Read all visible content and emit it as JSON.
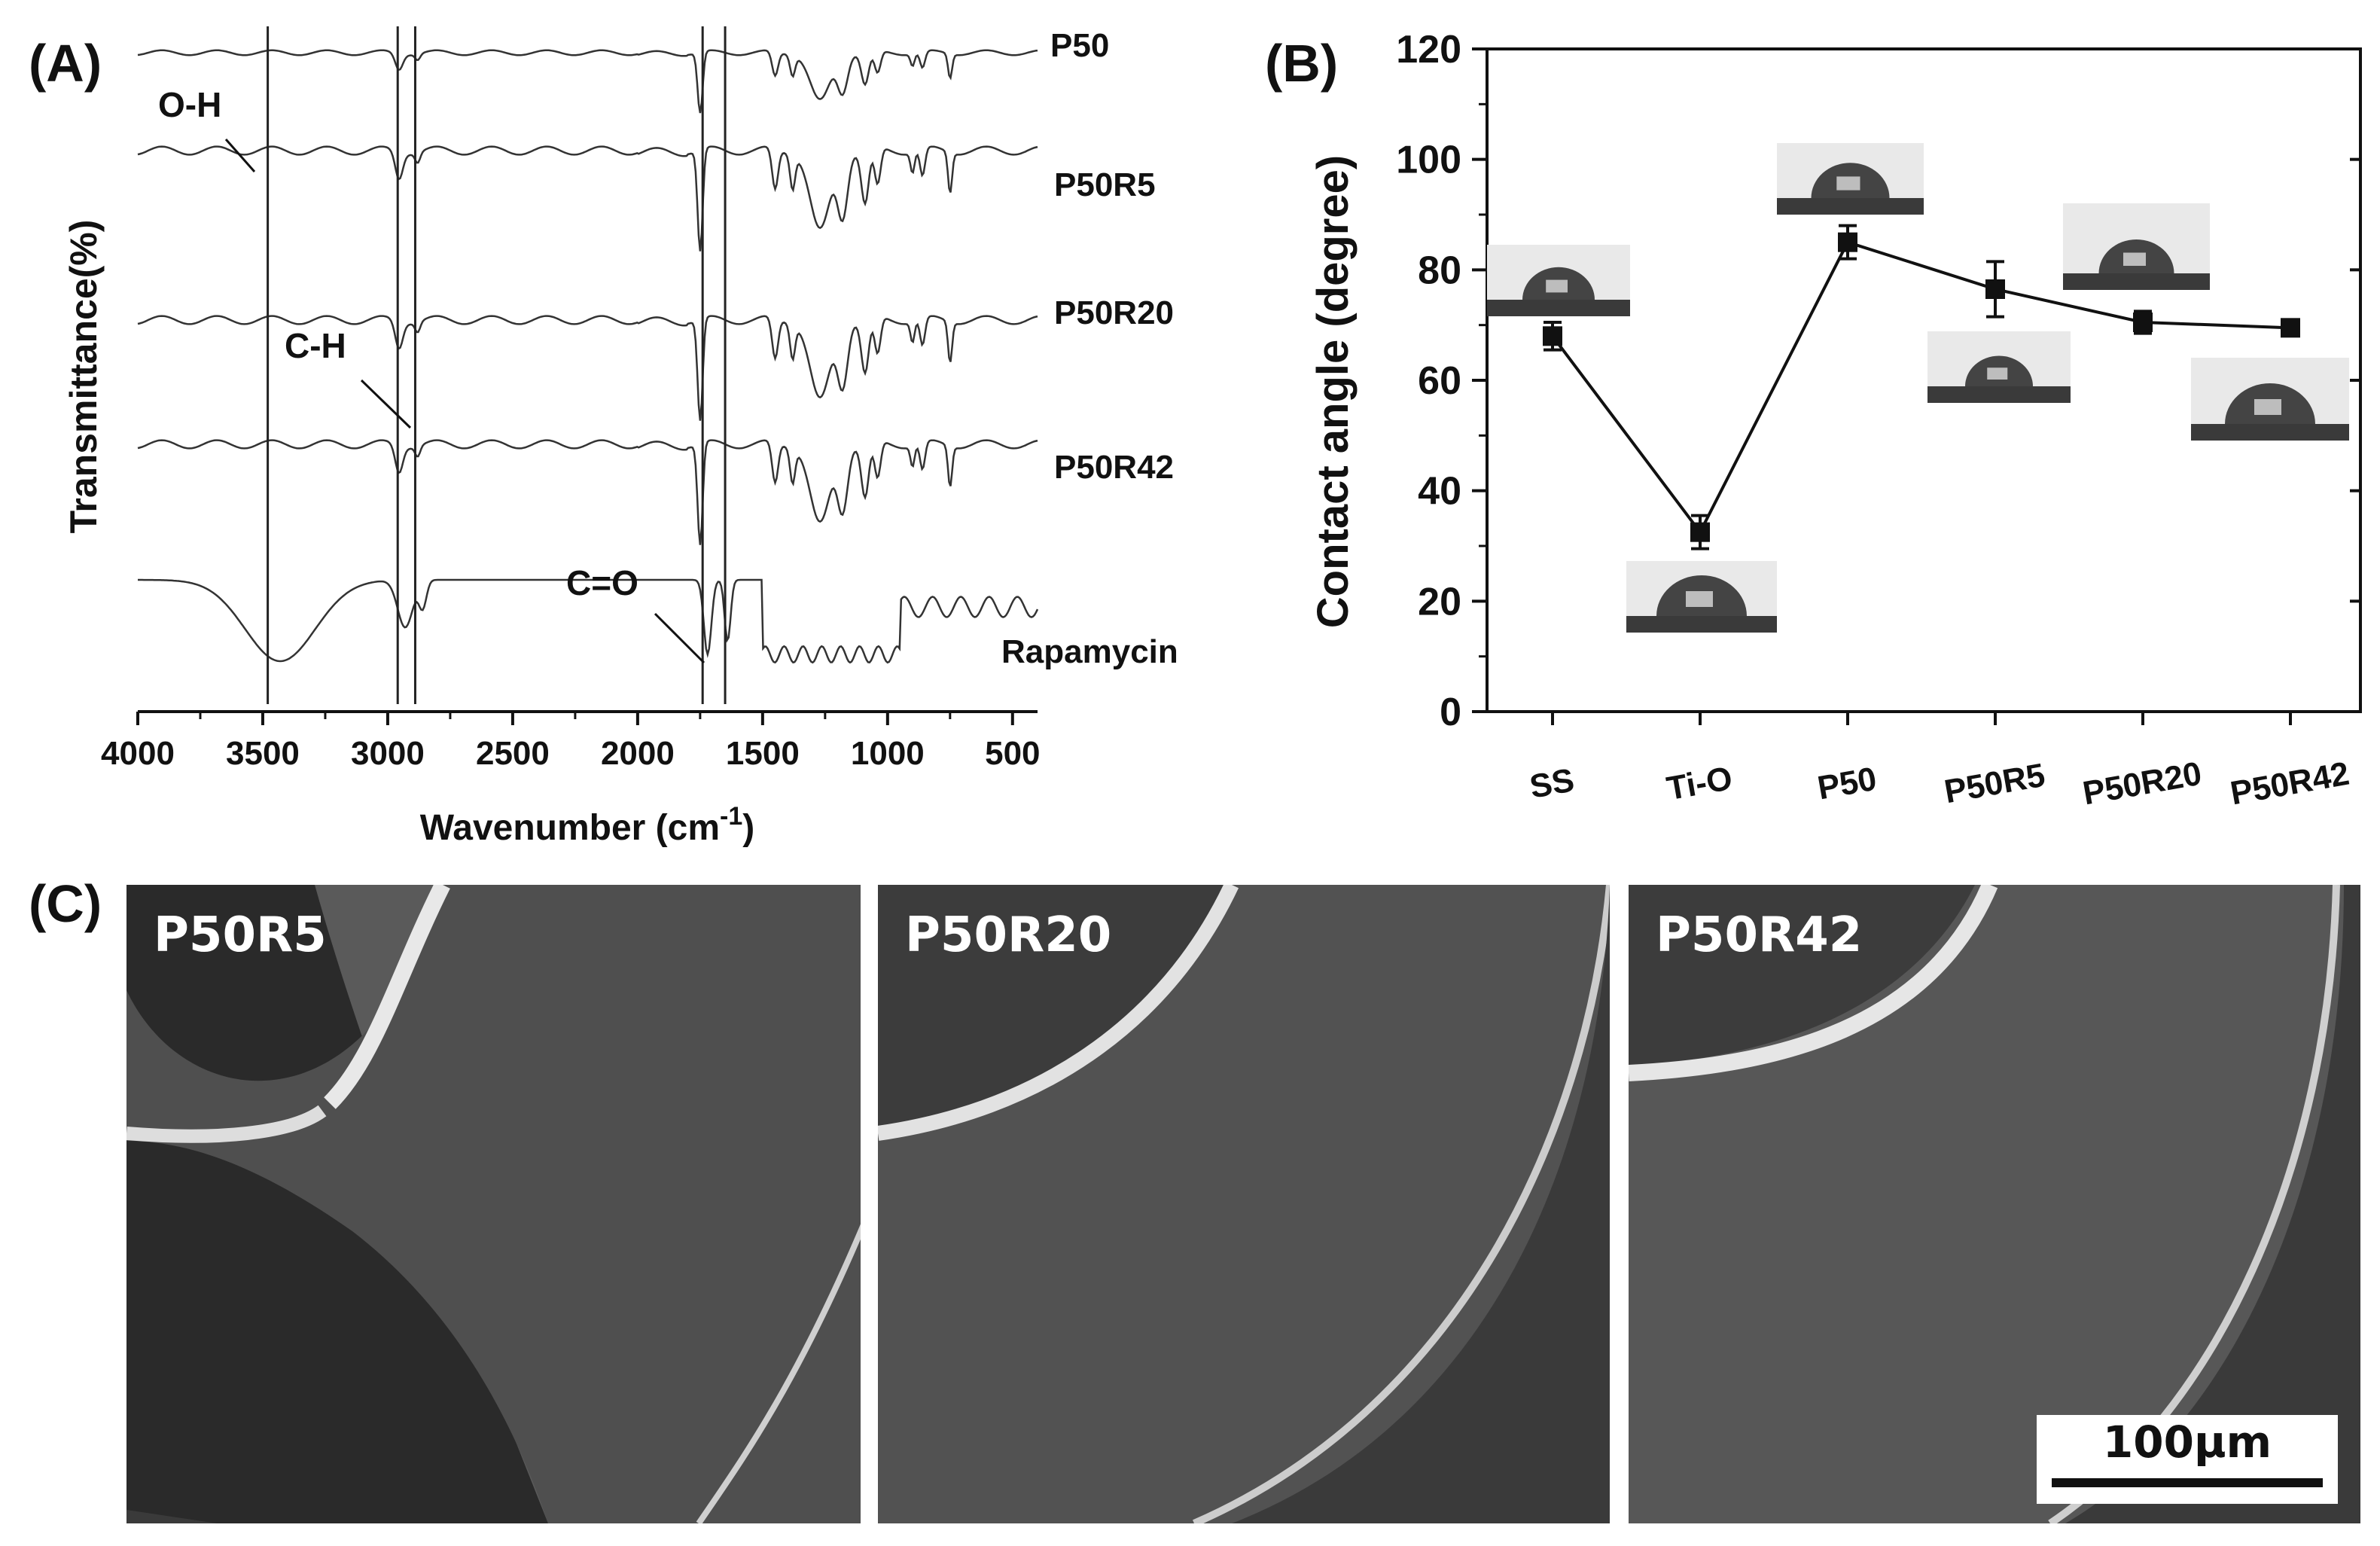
{
  "panels": {
    "a": "(A)",
    "b": "(B)",
    "c": "(C)"
  },
  "ftir": {
    "xlabel": "Wavenumber (cm",
    "xlabel_sup": "-1",
    "xlabel_end": ")",
    "ylabel": "Transmittance(%)",
    "xticks": [
      4000,
      3500,
      3000,
      2500,
      2000,
      1500,
      1000,
      500
    ],
    "xlim": [
      4000,
      400
    ],
    "series": [
      "P50",
      "P50R5",
      "P50R20",
      "P50R42",
      "Rapamycin"
    ],
    "annotations": {
      "oh": "O-H",
      "ch": "C-H",
      "co": "C=O"
    },
    "marker_lines": [
      3480,
      2960,
      2890,
      1740,
      1650
    ]
  },
  "chart_data": {
    "type": "scatter",
    "ylabel": "Contact angle (degree)",
    "categories": [
      "SS",
      "Ti-O",
      "P50",
      "P50R5",
      "P50R20",
      "P50R42"
    ],
    "values": [
      68,
      32.5,
      85,
      76.5,
      70.5,
      69.5
    ],
    "errors": [
      2.5,
      3,
      3,
      5,
      2,
      1
    ],
    "ylim": [
      0,
      120
    ],
    "yticks": [
      0,
      20,
      40,
      60,
      80,
      100,
      120
    ],
    "line": true
  },
  "sem": {
    "panels": [
      "P50R5",
      "P50R20",
      "P50R42"
    ],
    "scalebar": "100µm"
  }
}
